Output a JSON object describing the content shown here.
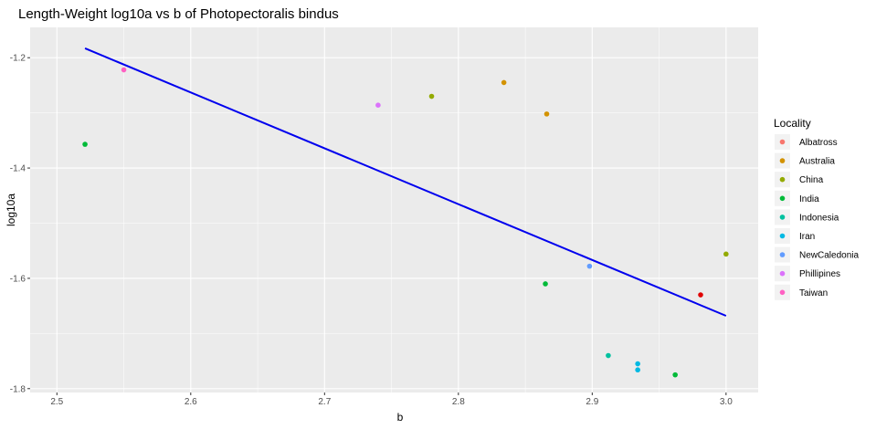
{
  "chart_data": {
    "type": "scatter",
    "title": "Length-Weight log10a vs b of Photopectoralis bindus",
    "xlabel": "b",
    "ylabel": "log10a",
    "xlim": [
      2.48,
      3.024
    ],
    "ylim": [
      -1.807,
      -1.145
    ],
    "x_ticks": [
      2.5,
      2.6,
      2.7,
      2.8,
      2.9,
      3.0
    ],
    "x_tick_labels": [
      "2.5",
      "2.6",
      "2.7",
      "2.8",
      "2.9",
      "3.0"
    ],
    "y_ticks": [
      -1.2,
      -1.4,
      -1.6,
      -1.8
    ],
    "y_tick_labels": [
      "-1.2",
      "-1.4",
      "-1.6",
      "-1.8"
    ],
    "grid": true,
    "background_color": "#ebebeb",
    "legend": {
      "title": "Locality",
      "position": "right",
      "entries": [
        {
          "name": "Albatross",
          "color": "#F8766D"
        },
        {
          "name": "Australia",
          "color": "#D39200"
        },
        {
          "name": "China",
          "color": "#93AA00"
        },
        {
          "name": "India",
          "color": "#00BA38"
        },
        {
          "name": "Indonesia",
          "color": "#00C19F"
        },
        {
          "name": "Iran",
          "color": "#00B9E3"
        },
        {
          "name": "NewCaledonia",
          "color": "#619CFF"
        },
        {
          "name": "Phillipines",
          "color": "#DB72FB"
        },
        {
          "name": "Taiwan",
          "color": "#FF61C3"
        }
      ]
    },
    "points": [
      {
        "x": 2.521,
        "y": -1.357,
        "color": "#00BA38"
      },
      {
        "x": 2.55,
        "y": -1.222,
        "color": "#FF61C3"
      },
      {
        "x": 2.74,
        "y": -1.286,
        "color": "#DB72FB"
      },
      {
        "x": 2.78,
        "y": -1.27,
        "color": "#93AA00"
      },
      {
        "x": 2.834,
        "y": -1.245,
        "color": "#D39200"
      },
      {
        "x": 2.866,
        "y": -1.302,
        "color": "#D39200"
      },
      {
        "x": 2.865,
        "y": -1.61,
        "color": "#00BA38"
      },
      {
        "x": 2.898,
        "y": -1.578,
        "color": "#619CFF"
      },
      {
        "x": 2.912,
        "y": -1.74,
        "color": "#00C19F"
      },
      {
        "x": 2.934,
        "y": -1.755,
        "color": "#00B9E3"
      },
      {
        "x": 2.934,
        "y": -1.766,
        "color": "#00B9E3"
      },
      {
        "x": 2.962,
        "y": -1.775,
        "color": "#00BA38"
      },
      {
        "x": 2.981,
        "y": -1.63,
        "color": "#E00000"
      },
      {
        "x": 3.0,
        "y": -1.556,
        "color": "#93AA00"
      }
    ],
    "fit_line": {
      "color": "#0000EE",
      "x": [
        2.521,
        3.0
      ],
      "y": [
        -1.183,
        -1.668
      ]
    }
  }
}
